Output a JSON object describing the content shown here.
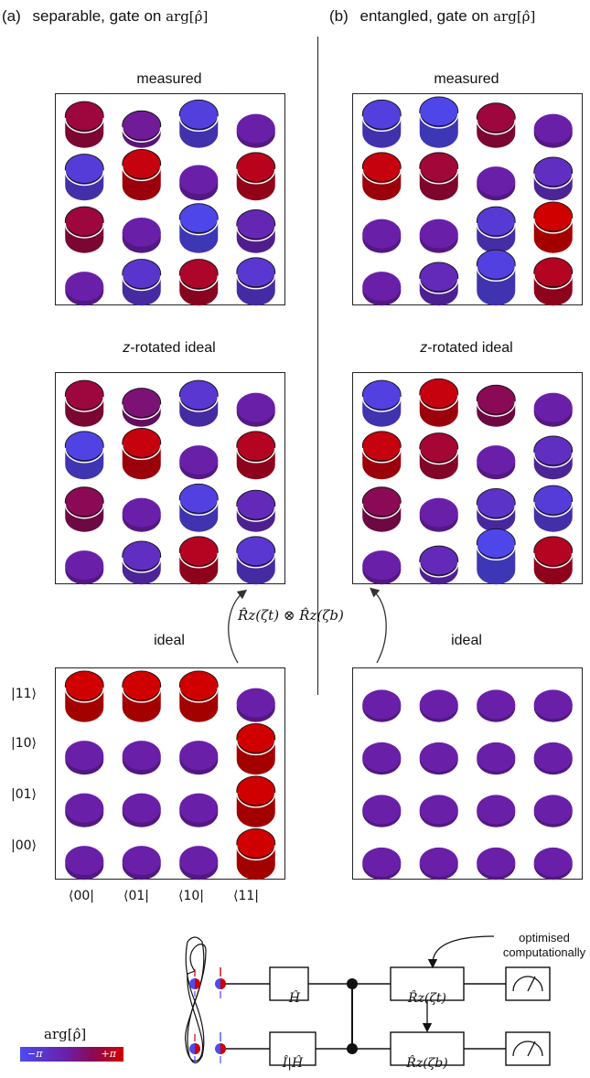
{
  "headers": {
    "a": {
      "tag": "(a)",
      "text": "separable, gate on",
      "math": "arg[ρ̂]"
    },
    "b": {
      "tag": "(b)",
      "text": "entangled, gate on",
      "math": "arg[ρ̂]"
    }
  },
  "panels": [
    {
      "id": "a-measured",
      "title": "measured",
      "italic_prefix": "",
      "cells": [
        [
          {
            "h": 0.55,
            "p": 0.78
          },
          {
            "h": 0.25,
            "p": 0.5
          },
          {
            "h": 0.6,
            "p": 0.12
          },
          {
            "h": 0.15,
            "p": 0.45
          }
        ],
        [
          {
            "h": 0.55,
            "p": 0.15
          },
          {
            "h": 0.7,
            "p": 0.95
          },
          {
            "h": 0.2,
            "p": 0.45
          },
          {
            "h": 0.6,
            "p": 0.9
          }
        ],
        [
          {
            "h": 0.55,
            "p": 0.78
          },
          {
            "h": 0.2,
            "p": 0.45
          },
          {
            "h": 0.65,
            "p": 0.05
          },
          {
            "h": 0.45,
            "p": 0.38
          }
        ],
        [
          {
            "h": 0.15,
            "p": 0.45
          },
          {
            "h": 0.55,
            "p": 0.22
          },
          {
            "h": 0.55,
            "p": 0.85
          },
          {
            "h": 0.6,
            "p": 0.2
          }
        ]
      ]
    },
    {
      "id": "b-measured",
      "title": "measured",
      "italic_prefix": "",
      "cells": [
        [
          {
            "h": 0.6,
            "p": 0.12
          },
          {
            "h": 0.7,
            "p": 0.05
          },
          {
            "h": 0.5,
            "p": 0.78
          },
          {
            "h": 0.15,
            "p": 0.45
          }
        ],
        [
          {
            "h": 0.6,
            "p": 0.95
          },
          {
            "h": 0.6,
            "p": 0.8
          },
          {
            "h": 0.15,
            "p": 0.45
          },
          {
            "h": 0.45,
            "p": 0.3
          }
        ],
        [
          {
            "h": 0.15,
            "p": 0.45
          },
          {
            "h": 0.15,
            "p": 0.45
          },
          {
            "h": 0.55,
            "p": 0.18
          },
          {
            "h": 0.7,
            "p": 1.0
          }
        ],
        [
          {
            "h": 0.15,
            "p": 0.45
          },
          {
            "h": 0.45,
            "p": 0.35
          },
          {
            "h": 0.85,
            "p": 0.1
          },
          {
            "h": 0.6,
            "p": 0.88
          }
        ]
      ]
    },
    {
      "id": "a-zrot",
      "title": "-rotated ideal",
      "italic_prefix": "z",
      "cells": [
        [
          {
            "h": 0.55,
            "p": 0.78
          },
          {
            "h": 0.3,
            "p": 0.6
          },
          {
            "h": 0.55,
            "p": 0.2
          },
          {
            "h": 0.15,
            "p": 0.45
          }
        ],
        [
          {
            "h": 0.6,
            "p": 0.08
          },
          {
            "h": 0.7,
            "p": 0.95
          },
          {
            "h": 0.15,
            "p": 0.45
          },
          {
            "h": 0.6,
            "p": 0.88
          }
        ],
        [
          {
            "h": 0.5,
            "p": 0.7
          },
          {
            "h": 0.15,
            "p": 0.45
          },
          {
            "h": 0.6,
            "p": 0.1
          },
          {
            "h": 0.4,
            "p": 0.35
          }
        ],
        [
          {
            "h": 0.15,
            "p": 0.45
          },
          {
            "h": 0.45,
            "p": 0.3
          },
          {
            "h": 0.6,
            "p": 0.88
          },
          {
            "h": 0.6,
            "p": 0.2
          }
        ]
      ]
    },
    {
      "id": "b-zrot",
      "title": "-rotated ideal",
      "italic_prefix": "z",
      "cells": [
        [
          {
            "h": 0.55,
            "p": 0.1
          },
          {
            "h": 0.6,
            "p": 0.95
          },
          {
            "h": 0.4,
            "p": 0.7
          },
          {
            "h": 0.15,
            "p": 0.45
          }
        ],
        [
          {
            "h": 0.6,
            "p": 0.95
          },
          {
            "h": 0.55,
            "p": 0.82
          },
          {
            "h": 0.15,
            "p": 0.45
          },
          {
            "h": 0.45,
            "p": 0.3
          }
        ],
        [
          {
            "h": 0.5,
            "p": 0.7
          },
          {
            "h": 0.15,
            "p": 0.45
          },
          {
            "h": 0.45,
            "p": 0.25
          },
          {
            "h": 0.55,
            "p": 0.15
          }
        ],
        [
          {
            "h": 0.15,
            "p": 0.45
          },
          {
            "h": 0.3,
            "p": 0.35
          },
          {
            "h": 0.85,
            "p": 0.05
          },
          {
            "h": 0.6,
            "p": 0.88
          }
        ]
      ]
    },
    {
      "id": "a-ideal",
      "title": "ideal",
      "italic_prefix": "",
      "cells": [
        [
          {
            "h": 0.7,
            "p": 1.0
          },
          {
            "h": 0.7,
            "p": 1.0
          },
          {
            "h": 0.7,
            "p": 1.0
          },
          {
            "h": 0.15,
            "p": 0.45
          }
        ],
        [
          {
            "h": 0.15,
            "p": 0.45
          },
          {
            "h": 0.15,
            "p": 0.45
          },
          {
            "h": 0.15,
            "p": 0.45
          },
          {
            "h": 0.7,
            "p": 1.0
          }
        ],
        [
          {
            "h": 0.15,
            "p": 0.45
          },
          {
            "h": 0.15,
            "p": 0.45
          },
          {
            "h": 0.15,
            "p": 0.45
          },
          {
            "h": 0.7,
            "p": 1.0
          }
        ],
        [
          {
            "h": 0.15,
            "p": 0.45
          },
          {
            "h": 0.15,
            "p": 0.45
          },
          {
            "h": 0.15,
            "p": 0.45
          },
          {
            "h": 0.7,
            "p": 1.0
          }
        ]
      ]
    },
    {
      "id": "b-ideal",
      "title": "ideal",
      "italic_prefix": "",
      "cells": [
        [
          {
            "h": 0.1,
            "p": 0.45
          },
          {
            "h": 0.1,
            "p": 0.45
          },
          {
            "h": 0.1,
            "p": 0.45
          },
          {
            "h": 0.1,
            "p": 0.45
          }
        ],
        [
          {
            "h": 0.1,
            "p": 0.45
          },
          {
            "h": 0.1,
            "p": 0.45
          },
          {
            "h": 0.1,
            "p": 0.45
          },
          {
            "h": 0.1,
            "p": 0.45
          }
        ],
        [
          {
            "h": 0.1,
            "p": 0.45
          },
          {
            "h": 0.1,
            "p": 0.45
          },
          {
            "h": 0.1,
            "p": 0.45
          },
          {
            "h": 0.1,
            "p": 0.45
          }
        ],
        [
          {
            "h": 0.1,
            "p": 0.45
          },
          {
            "h": 0.1,
            "p": 0.45
          },
          {
            "h": 0.1,
            "p": 0.45
          },
          {
            "h": 0.1,
            "p": 0.45
          }
        ]
      ]
    }
  ],
  "row_labels": [
    "|11⟩",
    "|10⟩",
    "|01⟩",
    "|00⟩"
  ],
  "col_labels": [
    "⟨00|",
    "⟨01|",
    "⟨10|",
    "⟨11|"
  ],
  "rotation_label": "R̂z(ζt) ⊗ R̂z(ζb)",
  "circuit": {
    "annotation": [
      "optimised",
      "computationally"
    ],
    "gate_top_1": "Ĥ",
    "gate_bottom_1": "Î|Ĥ",
    "gate_top_2": "R̂z(ζt)",
    "gate_bottom_2": "R̂z(ζb)"
  },
  "colorbar": {
    "label": "arg[ρ̂]",
    "min": "−π",
    "max": "+π"
  },
  "colors": {
    "low": "#4b4bf0",
    "mid": "#6a1fa8",
    "high": "#d10000"
  }
}
